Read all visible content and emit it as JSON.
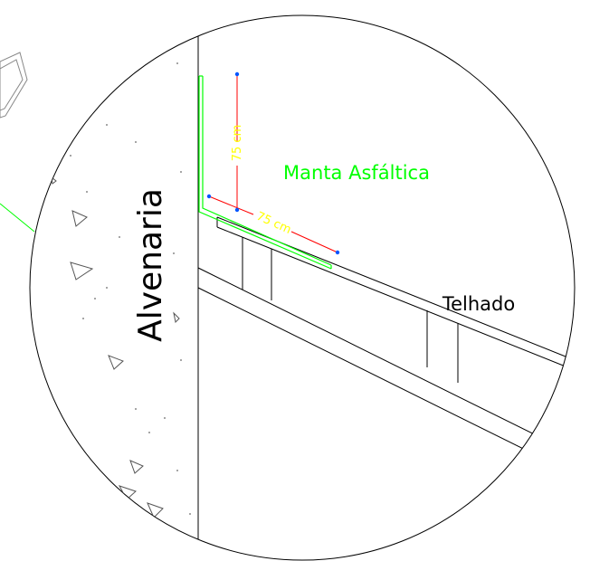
{
  "labels": {
    "wall": "Alvenaria",
    "membrane": "Manta Asfáltica",
    "roof": "Telhado"
  },
  "dimensions": {
    "vertical": "75 cm",
    "diagonal": "75 cm"
  },
  "colors": {
    "line": "#000000",
    "membrane": "#00ff00",
    "dimension_line": "#ff0000",
    "dimension_text": "#ffff00",
    "dimension_point": "#0055ff",
    "background": "#ffffff"
  }
}
